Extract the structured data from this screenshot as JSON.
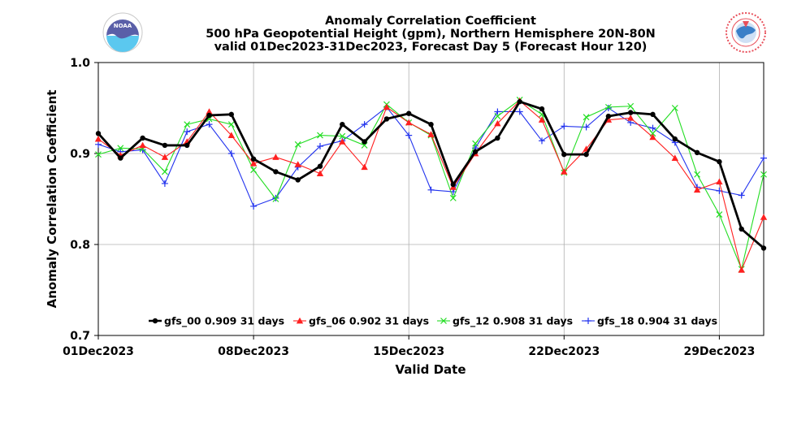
{
  "header": {
    "title_lines": [
      "Anomaly Correlation Coefficient",
      "500 hPa Geopotential Height (gpm), Northern Hemisphere 20N-80N",
      "valid 01Dec2023-31Dec2023, Forecast Day 5 (Forecast Hour 120)"
    ],
    "left_logo": {
      "icon": "noaa-logo",
      "text": "NOAA",
      "colors": {
        "top": "#5a5fa8",
        "bottom": "#5bc8ef"
      }
    },
    "right_logo": {
      "icon": "nws-logo",
      "text": "NATIONAL WEATHER SERVICE",
      "colors": {
        "ring": "#e8505b",
        "center": "#3a7fc8"
      }
    }
  },
  "chart_data": {
    "type": "line",
    "title": "Anomaly Correlation Coefficient",
    "xlabel": "Valid Date",
    "ylabel": "Anomaly Correlation Coefficient",
    "xlim": [
      "01Dec2023",
      "31Dec2023"
    ],
    "ylim": [
      0.7,
      1.0
    ],
    "x": [
      "01Dec2023",
      "02Dec2023",
      "03Dec2023",
      "04Dec2023",
      "05Dec2023",
      "06Dec2023",
      "07Dec2023",
      "08Dec2023",
      "09Dec2023",
      "10Dec2023",
      "11Dec2023",
      "12Dec2023",
      "13Dec2023",
      "14Dec2023",
      "15Dec2023",
      "16Dec2023",
      "17Dec2023",
      "18Dec2023",
      "19Dec2023",
      "20Dec2023",
      "21Dec2023",
      "22Dec2023",
      "23Dec2023",
      "24Dec2023",
      "25Dec2023",
      "26Dec2023",
      "27Dec2023",
      "28Dec2023",
      "29Dec2023",
      "30Dec2023",
      "31Dec2023"
    ],
    "xticks": [
      "01Dec2023",
      "08Dec2023",
      "15Dec2023",
      "22Dec2023",
      "29Dec2023"
    ],
    "yticks": [
      "0.7",
      "0.8",
      "0.9",
      "1.0"
    ],
    "grid": true,
    "legend_position": "bottom",
    "series": [
      {
        "name": "gfs_00 0.909 31 days",
        "color": "#000000",
        "marker": "circle",
        "values": [
          0.922,
          0.895,
          0.917,
          0.909,
          0.909,
          0.942,
          0.943,
          0.894,
          0.88,
          0.871,
          0.886,
          0.932,
          0.913,
          0.938,
          0.944,
          0.932,
          0.866,
          0.902,
          0.917,
          0.957,
          0.949,
          0.899,
          0.899,
          0.941,
          0.945,
          0.943,
          0.916,
          0.901,
          0.891,
          0.817,
          0.796
        ]
      },
      {
        "name": "gfs_06 0.902 31 days",
        "color": "#ff2020",
        "marker": "triangle",
        "values": [
          0.916,
          0.898,
          0.909,
          0.896,
          0.913,
          0.946,
          0.92,
          0.889,
          0.896,
          0.888,
          0.878,
          0.913,
          0.885,
          0.951,
          0.934,
          0.921,
          0.863,
          0.9,
          0.933,
          0.958,
          0.937,
          0.88,
          0.905,
          0.937,
          0.939,
          0.918,
          0.895,
          0.86,
          0.869,
          0.772,
          0.83
        ]
      },
      {
        "name": "gfs_12 0.908 31 days",
        "color": "#22dd22",
        "marker": "x",
        "values": [
          0.899,
          0.906,
          0.905,
          0.88,
          0.932,
          0.938,
          0.932,
          0.882,
          0.85,
          0.91,
          0.92,
          0.919,
          0.909,
          0.954,
          0.934,
          0.92,
          0.851,
          0.911,
          0.941,
          0.959,
          0.943,
          0.879,
          0.94,
          0.951,
          0.952,
          0.922,
          0.95,
          0.877,
          0.833,
          0.773,
          0.877
        ]
      },
      {
        "name": "gfs_18 0.904 31 days",
        "color": "#2233ee",
        "marker": "plus",
        "values": [
          0.91,
          0.902,
          0.904,
          0.867,
          0.924,
          0.932,
          0.9,
          0.842,
          0.851,
          0.885,
          0.908,
          0.914,
          0.932,
          0.951,
          0.92,
          0.86,
          0.858,
          0.906,
          0.946,
          0.946,
          0.914,
          0.93,
          0.929,
          0.95,
          0.934,
          0.928,
          0.912,
          0.863,
          0.859,
          0.854,
          0.895
        ]
      }
    ]
  }
}
